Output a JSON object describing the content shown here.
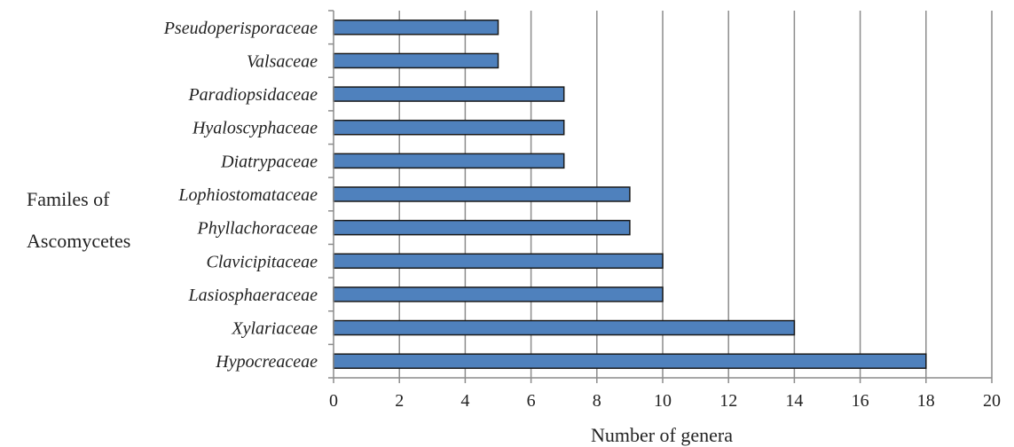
{
  "chart_data": {
    "type": "bar",
    "orientation": "horizontal",
    "categories": [
      "Pseudoperisporaceae",
      "Valsaceae",
      "Paradiopsidaceae",
      "Hyaloscyphaceae",
      "Diatrypaceae",
      "Lophiostomataceae",
      "Phyllachoraceae",
      "Clavicipitaceae",
      "Lasiosphaeraceae",
      "Xylariaceae",
      "Hypocreaceae"
    ],
    "values": [
      5,
      5,
      7,
      7,
      7,
      9,
      9,
      10,
      10,
      14,
      18
    ],
    "xlabel": "Number of genera",
    "ylabel_lines": [
      "Familes of",
      "Ascomycetes"
    ],
    "xlim": [
      0,
      20
    ],
    "xticks": [
      0,
      2,
      4,
      6,
      8,
      10,
      12,
      14,
      16,
      18,
      20
    ],
    "grid": "vertical",
    "bar_color": "#4f81bd",
    "bar_edge_color": "#1a1a1a",
    "grid_color": "#8c8c8c",
    "axis_color": "#8c8c8c"
  }
}
